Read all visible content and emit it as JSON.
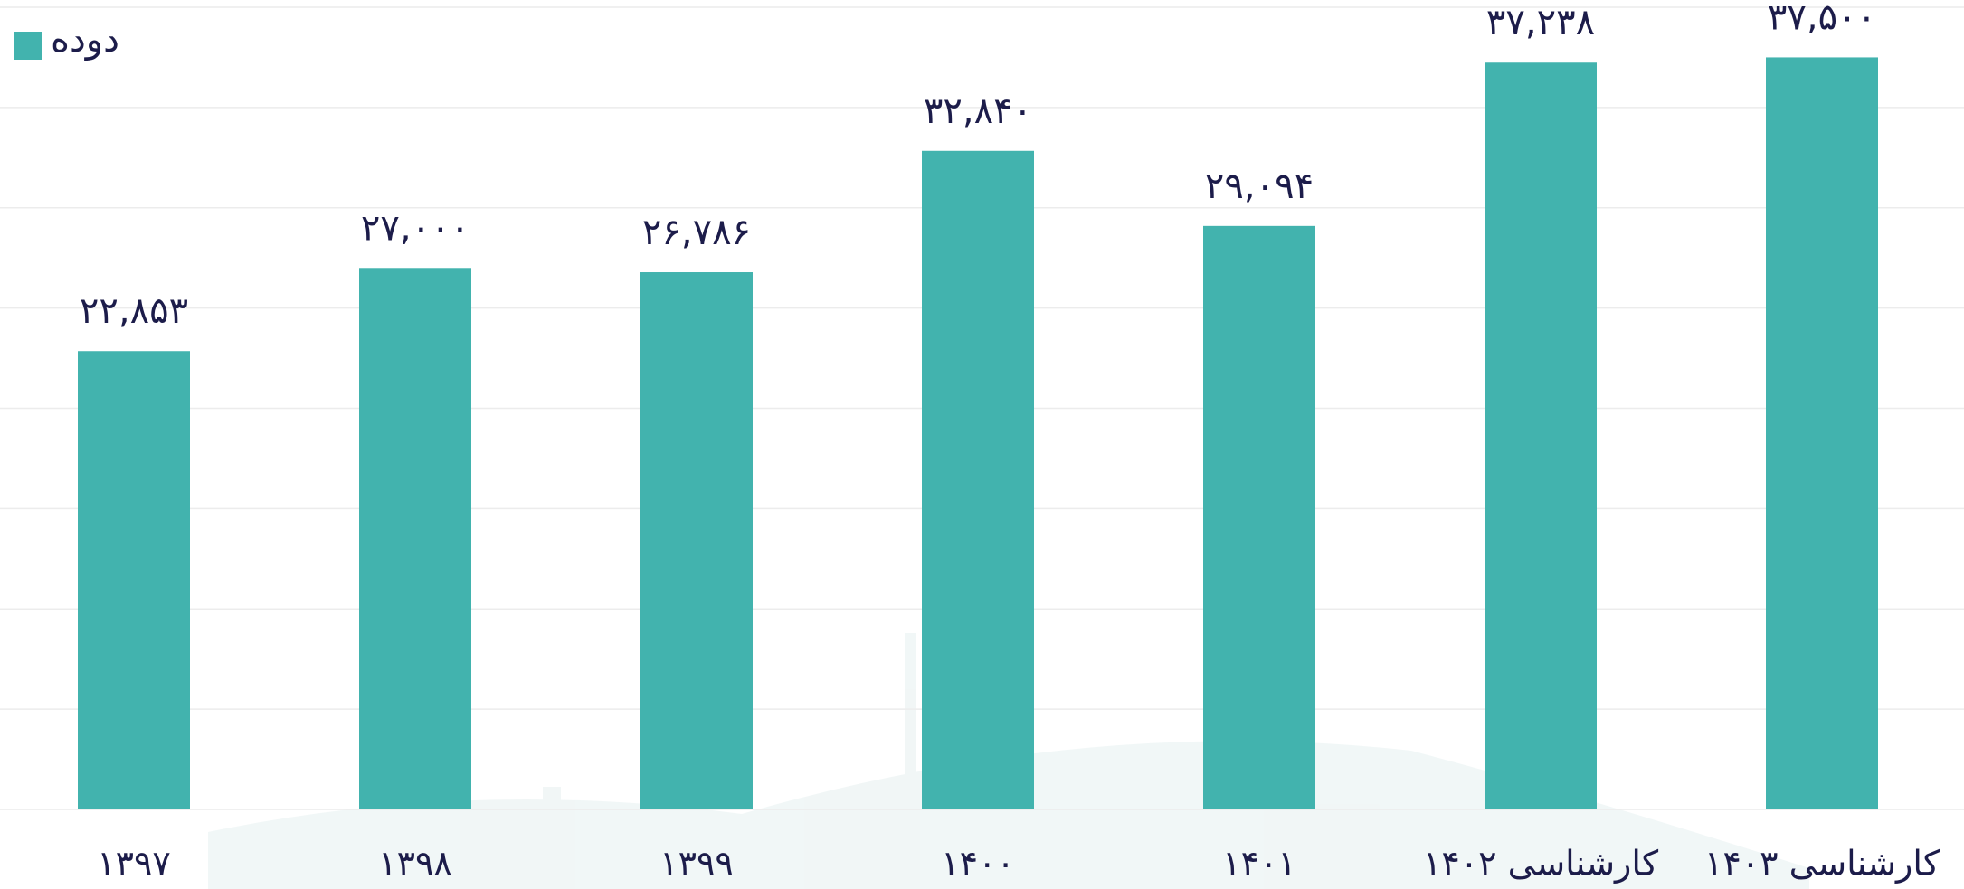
{
  "chart_data": {
    "type": "bar",
    "categories": [
      "۱۳۹۷",
      "۱۳۹۸",
      "۱۳۹۹",
      "۱۴۰۰",
      "۱۴۰۱",
      "کارشناسی ۱۴۰۲",
      "کارشناسی ۱۴۰۳"
    ],
    "series": [
      {
        "name": "دوده",
        "color": "#42b3ae",
        "values": [
          22853,
          27000,
          26786,
          32840,
          29094,
          37238,
          37500
        ],
        "value_labels": [
          "۲۲,۸۵۳",
          "۲۷,۰۰۰",
          "۲۶,۷۸۶",
          "۳۲,۸۴۰",
          "۲۹,۰۹۴",
          "۳۷,۲۳۸",
          "۳۷,۵۰۰"
        ]
      }
    ],
    "ylim": [
      0,
      40000
    ],
    "yticks": [
      0,
      5000,
      10000,
      15000,
      20000,
      25000,
      30000,
      35000,
      40000
    ],
    "grid": true,
    "legend": "top-left"
  }
}
